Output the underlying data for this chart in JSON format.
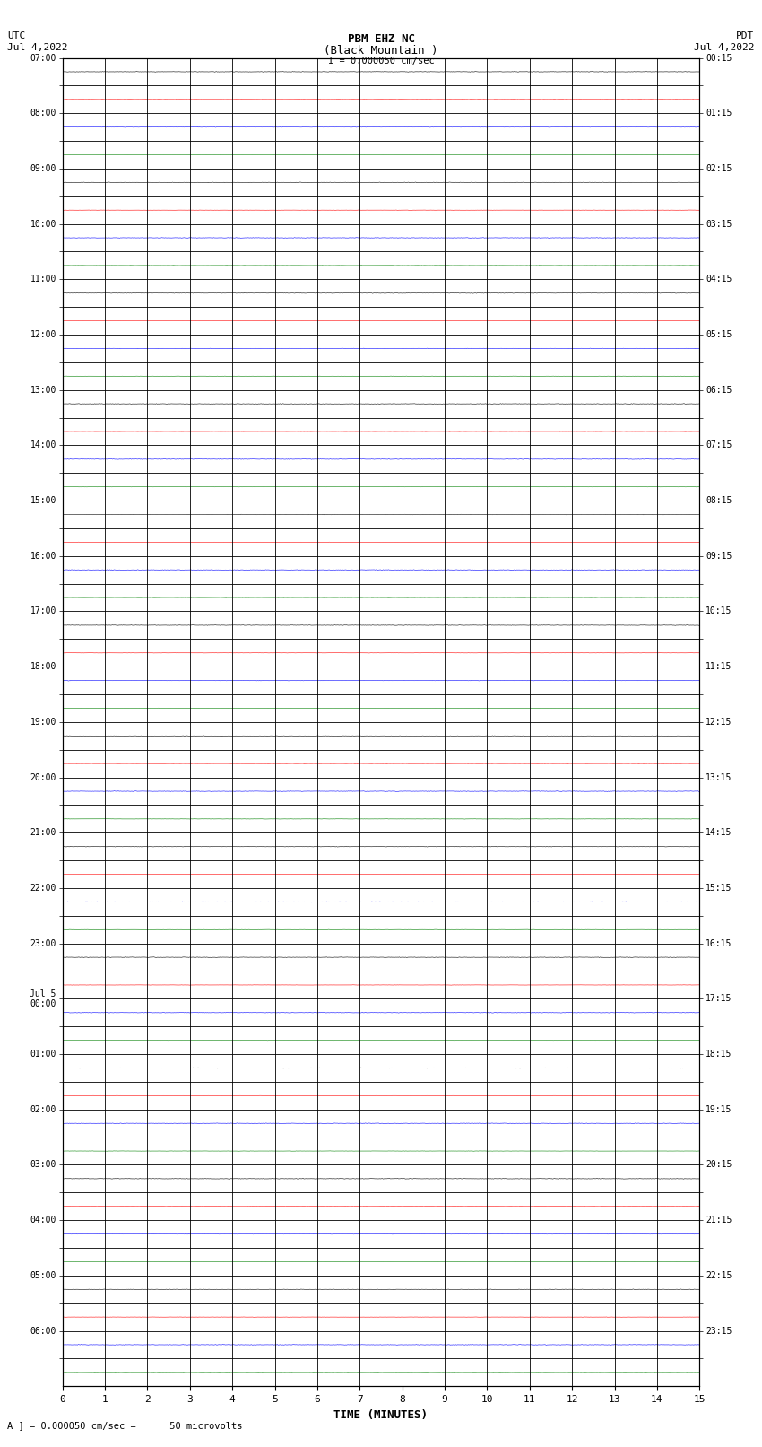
{
  "title_line1": "PBM EHZ NC",
  "title_line2": "(Black Mountain )",
  "title_line3": "I = 0.000050 cm/sec",
  "left_label_line1": "UTC",
  "left_label_line2": "Jul 4,2022",
  "right_label_line1": "PDT",
  "right_label_line2": "Jul 4,2022",
  "bottom_label": "TIME (MINUTES)",
  "bottom_note": "A ] = 0.000050 cm/sec =      50 microvolts",
  "x_ticks": [
    0,
    1,
    2,
    3,
    4,
    5,
    6,
    7,
    8,
    9,
    10,
    11,
    12,
    13,
    14,
    15
  ],
  "num_rows": 48,
  "background_color": "#ffffff",
  "left_ytick_labels": [
    "07:00",
    "",
    "08:00",
    "",
    "09:00",
    "",
    "10:00",
    "",
    "11:00",
    "",
    "12:00",
    "",
    "13:00",
    "",
    "14:00",
    "",
    "15:00",
    "",
    "16:00",
    "",
    "17:00",
    "",
    "18:00",
    "",
    "19:00",
    "",
    "20:00",
    "",
    "21:00",
    "",
    "22:00",
    "",
    "23:00",
    "",
    "Jul 5\n00:00",
    "",
    "01:00",
    "",
    "02:00",
    "",
    "03:00",
    "",
    "04:00",
    "",
    "05:00",
    "",
    "06:00",
    ""
  ],
  "right_ytick_labels": [
    "00:15",
    "",
    "01:15",
    "",
    "02:15",
    "",
    "03:15",
    "",
    "04:15",
    "",
    "05:15",
    "",
    "06:15",
    "",
    "07:15",
    "",
    "08:15",
    "",
    "09:15",
    "",
    "10:15",
    "",
    "11:15",
    "",
    "12:15",
    "",
    "13:15",
    "",
    "14:15",
    "",
    "15:15",
    "",
    "16:15",
    "",
    "17:15",
    "",
    "18:15",
    "",
    "19:15",
    "",
    "20:15",
    "",
    "21:15",
    "",
    "22:15",
    "",
    "23:15",
    ""
  ],
  "row_colors": [
    "#000000",
    "#ff0000",
    "#0000ff",
    "#008000",
    "#000000",
    "#ff0000",
    "#0000ff",
    "#008000",
    "#000000",
    "#ff0000",
    "#0000ff",
    "#008000",
    "#000000",
    "#ff0000",
    "#0000ff",
    "#008000",
    "#000000",
    "#ff0000",
    "#0000ff",
    "#008000",
    "#000000",
    "#ff0000",
    "#0000ff",
    "#008000",
    "#000000",
    "#ff0000",
    "#0000ff",
    "#008000",
    "#000000",
    "#ff0000",
    "#0000ff",
    "#008000",
    "#000000",
    "#ff0000",
    "#0000ff",
    "#008000",
    "#000000",
    "#ff0000",
    "#0000ff",
    "#008000",
    "#000000",
    "#ff0000",
    "#0000ff",
    "#008000",
    "#000000",
    "#ff0000",
    "#0000ff",
    "#008000"
  ],
  "row_amplitudes": [
    0.006,
    0.003,
    0.006,
    0.003,
    0.006,
    0.003,
    0.006,
    0.003,
    0.006,
    0.003,
    0.006,
    0.003,
    0.006,
    0.003,
    0.006,
    0.003,
    0.006,
    0.003,
    0.006,
    0.003,
    0.006,
    0.003,
    0.006,
    0.003,
    0.006,
    0.003,
    0.006,
    0.003,
    0.006,
    0.003,
    0.006,
    0.003,
    0.006,
    0.003,
    0.006,
    0.003,
    0.006,
    0.003,
    0.006,
    0.003,
    0.006,
    0.003,
    0.006,
    0.003,
    0.006,
    0.003,
    0.006,
    0.003
  ],
  "seed": 42
}
